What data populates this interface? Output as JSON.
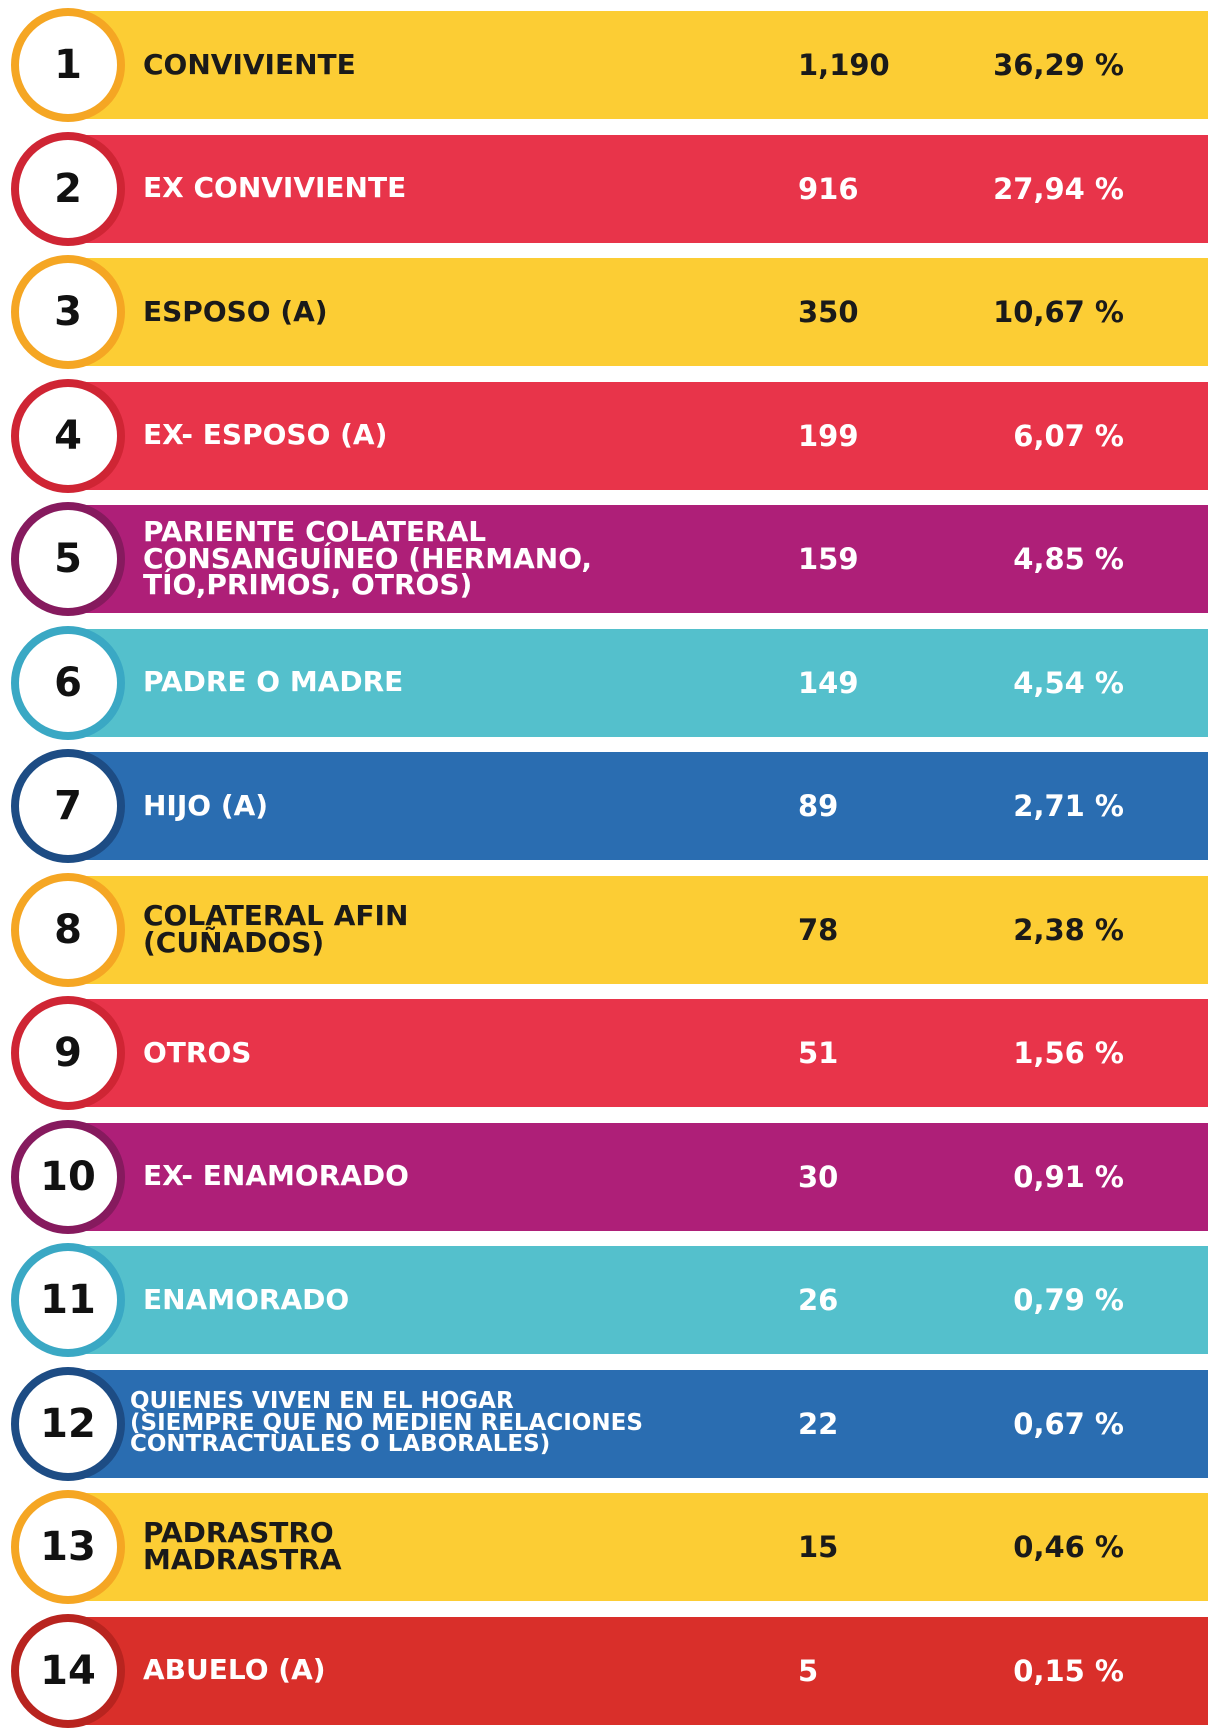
{
  "table": {
    "rows": [
      {
        "rank": "1",
        "label": [
          "CONVIVIENTE"
        ],
        "count": "1,190",
        "percent": "36,29 %",
        "color": "#fccd34",
        "ring": "#f5a623",
        "text_color": "#1a1a1a"
      },
      {
        "rank": "2",
        "label": [
          "EX CONVIVIENTE"
        ],
        "count": "916",
        "percent": "27,94 %",
        "color": "#e8344a",
        "ring": "#cf2534",
        "text_color": "#ffffff"
      },
      {
        "rank": "3",
        "label": [
          "ESPOSO (A)"
        ],
        "count": "350",
        "percent": "10,67 %",
        "color": "#fccd34",
        "ring": "#f5a623",
        "text_color": "#1a1a1a"
      },
      {
        "rank": "4",
        "label": [
          "EX- ESPOSO (A)"
        ],
        "count": "199",
        "percent": "6,07 %",
        "color": "#e8344a",
        "ring": "#cf2534",
        "text_color": "#ffffff"
      },
      {
        "rank": "5",
        "label": [
          "PARIENTE COLATERAL",
          "CONSANGUÍNEO (HERMANO,",
          "TÍO,PRIMOS, OTROS)"
        ],
        "count": "159",
        "percent": "4,85 %",
        "color": "#ae1f78",
        "ring": "#861a5e",
        "text_color": "#ffffff"
      },
      {
        "rank": "6",
        "label": [
          "PADRE O MADRE"
        ],
        "count": "149",
        "percent": "4,54 %",
        "color": "#54c0cc",
        "ring": "#3aa8c4",
        "text_color": "#ffffff"
      },
      {
        "rank": "7",
        "label": [
          "HIJO (A)"
        ],
        "count": "89",
        "percent": "2,71 %",
        "color": "#2a6db1",
        "ring": "#1d4c84",
        "text_color": "#ffffff"
      },
      {
        "rank": "8",
        "label": [
          "COLATERAL AFIN",
          "(CUÑADOS)"
        ],
        "count": "78",
        "percent": "2,38 %",
        "color": "#fccd34",
        "ring": "#f5a623",
        "text_color": "#1a1a1a"
      },
      {
        "rank": "9",
        "label": [
          "OTROS"
        ],
        "count": "51",
        "percent": "1,56 %",
        "color": "#e8344a",
        "ring": "#cf2534",
        "text_color": "#ffffff"
      },
      {
        "rank": "10",
        "label": [
          "EX- ENAMORADO"
        ],
        "count": "30",
        "percent": "0,91 %",
        "color": "#ae1f78",
        "ring": "#861a5e",
        "text_color": "#ffffff"
      },
      {
        "rank": "11",
        "label": [
          "ENAMORADO"
        ],
        "count": "26",
        "percent": "0,79 %",
        "color": "#54c0cc",
        "ring": "#3aa8c4",
        "text_color": "#ffffff"
      },
      {
        "rank": "12",
        "label": [
          "QUIENES VIVEN EN EL HOGAR",
          "(SIEMPRE QUE NO MEDIEN RELACIONES",
          "CONTRACTUALES O LABORALES)"
        ],
        "count": "22",
        "percent": "0,67 %",
        "color": "#2a6db1",
        "ring": "#1d4c84",
        "text_color": "#ffffff"
      },
      {
        "rank": "13",
        "label": [
          "PADRASTRO",
          "MADRASTRA"
        ],
        "count": "15",
        "percent": "0,46 %",
        "color": "#fccd34",
        "ring": "#f5a623",
        "text_color": "#1a1a1a"
      },
      {
        "rank": "14",
        "label": [
          "ABUELO (A)"
        ],
        "count": "5",
        "percent": "0,15 %",
        "color": "#d92f2a",
        "ring": "#b8241f",
        "text_color": "#ffffff"
      }
    ]
  }
}
